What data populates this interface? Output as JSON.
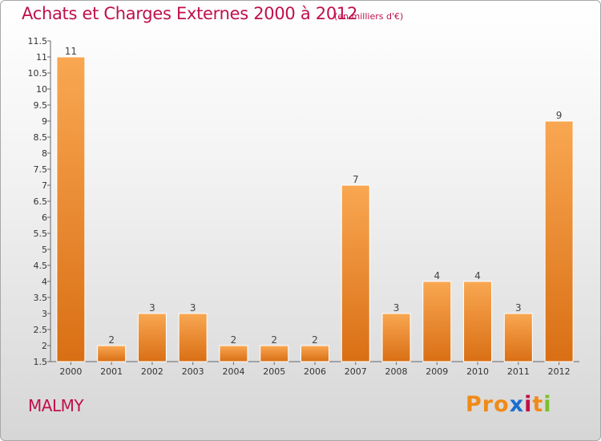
{
  "header": {
    "title": "Achats et Charges Externes 2000 à 2012",
    "subtitle": "(en milliers d'€)"
  },
  "footer": {
    "town": "MALMY",
    "logo": "Proxiti",
    "logo_colors": [
      "#f08a18",
      "#f08a18",
      "#f08a18",
      "#1a6fd0",
      "#c0104a",
      "#f08a18",
      "#7cbf2a"
    ]
  },
  "colors": {
    "bar_light": "#f9a752",
    "bar_dark": "#d96f14",
    "accent": "#c0104a"
  },
  "chart_data": {
    "type": "bar",
    "categories": [
      "2000",
      "2001",
      "2002",
      "2003",
      "2004",
      "2005",
      "2006",
      "2007",
      "2008",
      "2009",
      "2010",
      "2011",
      "2012"
    ],
    "values": [
      11,
      2,
      3,
      3,
      2,
      2,
      2,
      7,
      3,
      4,
      4,
      3,
      9
    ],
    "value_labels": [
      "11",
      "2",
      "3",
      "3",
      "2",
      "2",
      "2",
      "7",
      "3",
      "4",
      "4",
      "3",
      "9"
    ],
    "ylim": [
      1.5,
      11.5
    ],
    "yticks": [
      "1.5",
      "2",
      "2.5",
      "3",
      "3.5",
      "4",
      "4.5",
      "5",
      "5.5",
      "6",
      "6.5",
      "7",
      "7.5",
      "8",
      "8.5",
      "9",
      "9.5",
      "10",
      "10.5",
      "11",
      "11.5"
    ],
    "grid": false,
    "xlabel": "",
    "ylabel": ""
  }
}
